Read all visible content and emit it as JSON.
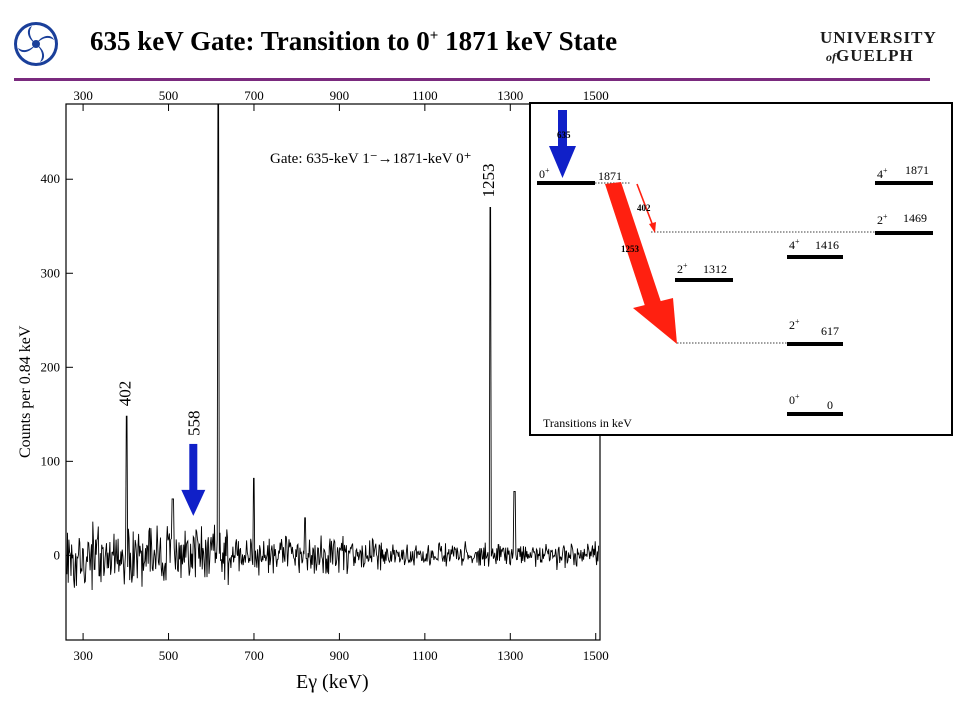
{
  "slide": {
    "title_main": "635 keV Gate: Transition to 0",
    "title_sup": "+",
    "title_rest": " 1871 keV State",
    "logo_line1": "UNIVERSITY",
    "logo_of": "of",
    "logo_line2": "GUELPH"
  },
  "chart_data": [
    {
      "type": "line",
      "title": "Gate: 635-keV 1⁻→1871-keV 0⁺",
      "xlabel": "Eγ (keV)",
      "ylabel": "Counts per 0.84 keV",
      "xlim": [
        260,
        1510
      ],
      "ylim": [
        -90,
        480
      ],
      "x_ticks": [
        300,
        500,
        700,
        900,
        1100,
        1300,
        1500
      ],
      "x_tick_labels": [
        "300",
        "500",
        "700",
        "900",
        "1100",
        "1300",
        "1500"
      ],
      "y_ticks": [
        0,
        100,
        200,
        300,
        400
      ],
      "y_tick_labels": [
        "0",
        "100",
        "200",
        "300",
        "400"
      ],
      "grid": false,
      "peaks": [
        {
          "x": 402,
          "y": 148,
          "label": "402"
        },
        {
          "x": 617,
          "y": 480,
          "label": ""
        },
        {
          "x": 1253,
          "y": 370,
          "label": "1253"
        },
        {
          "x": 700,
          "y": 82,
          "label": ""
        },
        {
          "x": 1310,
          "y": 68,
          "label": ""
        },
        {
          "x": 510,
          "y": 60,
          "label": ""
        },
        {
          "x": 820,
          "y": 40,
          "label": ""
        }
      ],
      "annotations": [
        {
          "label": "558",
          "x": 558,
          "y": 110,
          "arrow": "down",
          "color": "#1020c8"
        }
      ]
    },
    {
      "type": "diagram",
      "note": "Transitions in keV",
      "levels": [
        {
          "spin": "0",
          "parity": "+",
          "energy": "1871"
        },
        {
          "spin": "4",
          "parity": "+",
          "energy": "1871"
        },
        {
          "spin": "2",
          "parity": "+",
          "energy": "1469"
        },
        {
          "spin": "4",
          "parity": "+",
          "energy": "1416"
        },
        {
          "spin": "2",
          "parity": "+",
          "energy": "1312"
        },
        {
          "spin": "2",
          "parity": "+",
          "energy": "617"
        },
        {
          "spin": "0",
          "parity": "+",
          "energy": "0"
        }
      ],
      "transitions": [
        {
          "label": "635",
          "color": "#1020c8"
        },
        {
          "label": "402",
          "color": "#ff2010"
        },
        {
          "label": "1253",
          "color": "#ff2010"
        }
      ]
    }
  ]
}
